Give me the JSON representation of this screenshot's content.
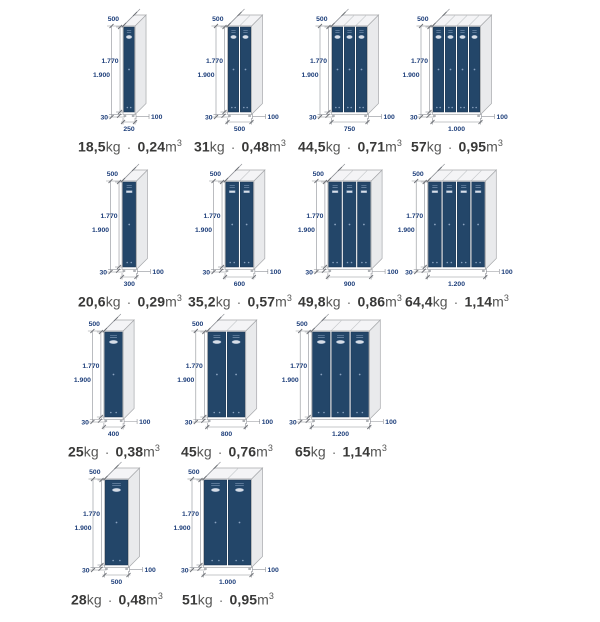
{
  "document": {
    "kind": "locker-dimension-spec-sheet",
    "background": "#ffffff"
  },
  "colors": {
    "door": "#234669",
    "door_edge": "#16314e",
    "door_detail": "#8aa2bf",
    "door_detail_light": "#d8dee7",
    "body": "#fcfcfd",
    "side": "#e9eaec",
    "top": "#f4f4f6",
    "outline": "#a6a8ab",
    "top_separator": "#c6c8cb",
    "feet": "#b0b3b7",
    "dim_line": "#8d9096",
    "dim_tick": "#6d7076",
    "dim_label": "#1d3e7a",
    "caption_number": "#393938",
    "caption_unit": "#565655"
  },
  "common_dims": {
    "depth_label": "500",
    "height_total_label": "1.900",
    "height_door_label": "1.770",
    "feet_label": "30",
    "base_depth_label": "100"
  },
  "units": {
    "weight_unit": "kg",
    "separator": "·",
    "volume_unit_base": "m",
    "volume_exponent": "3"
  },
  "rows": [
    {
      "door_width_mm": 250,
      "door_style": "handle",
      "items": [
        {
          "doors": 1,
          "width_label": "250",
          "weight": "18,5",
          "volume": "0,24"
        },
        {
          "doors": 2,
          "width_label": "500",
          "weight": "31",
          "volume": "0,48"
        },
        {
          "doors": 3,
          "width_label": "750",
          "weight": "44,5",
          "volume": "0,71"
        },
        {
          "doors": 4,
          "width_label": "1.000",
          "weight": "57",
          "volume": "0,95"
        }
      ]
    },
    {
      "door_width_mm": 300,
      "door_style": "vents",
      "items": [
        {
          "doors": 1,
          "width_label": "300",
          "weight": "20,6",
          "volume": "0,29"
        },
        {
          "doors": 2,
          "width_label": "600",
          "weight": "35,2",
          "volume": "0,57"
        },
        {
          "doors": 3,
          "width_label": "900",
          "weight": "49,8",
          "volume": "0,86"
        },
        {
          "doors": 4,
          "width_label": "1.200",
          "weight": "64,4",
          "volume": "1,14"
        }
      ]
    },
    {
      "door_width_mm": 400,
      "door_style": "handle",
      "items": [
        {
          "doors": 1,
          "width_label": "400",
          "weight": "25",
          "volume": "0,38"
        },
        {
          "doors": 2,
          "width_label": "800",
          "weight": "45",
          "volume": "0,76"
        },
        {
          "doors": 3,
          "width_label": "1.200",
          "weight": "65",
          "volume": "1,14"
        }
      ]
    },
    {
      "door_width_mm": 500,
      "door_style": "handle",
      "items": [
        {
          "doors": 1,
          "width_label": "500",
          "weight": "28",
          "volume": "0,48"
        },
        {
          "doors": 2,
          "width_label": "1.000",
          "weight": "51",
          "volume": "0,95"
        }
      ]
    }
  ]
}
